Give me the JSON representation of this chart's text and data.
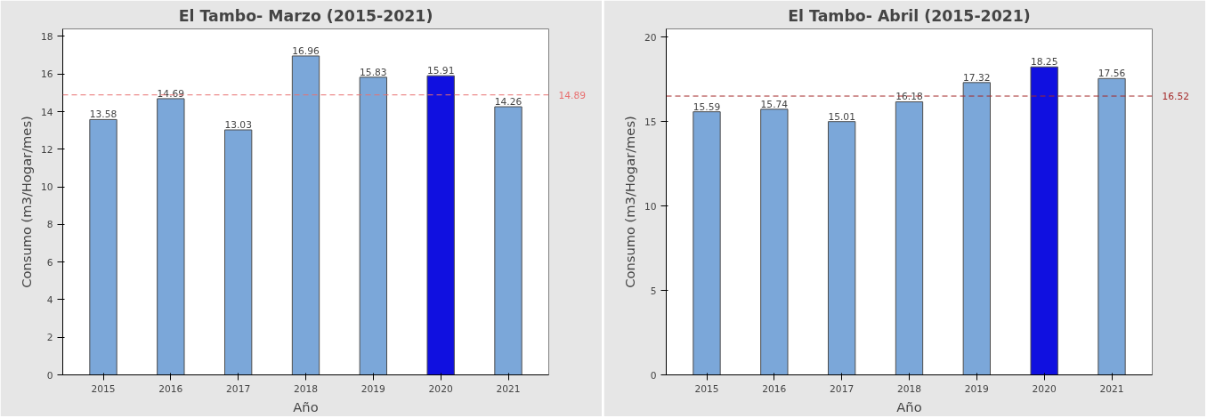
{
  "chart_data": [
    {
      "type": "bar",
      "title": "El Tambo- Marzo (2015-2021)",
      "xlabel": "Año",
      "ylabel": "Consumo (m3/Hogar/mes)",
      "categories": [
        "2015",
        "2016",
        "2017",
        "2018",
        "2019",
        "2020",
        "2021"
      ],
      "values": [
        13.58,
        14.69,
        13.03,
        16.96,
        15.83,
        15.91,
        14.26
      ],
      "colors": [
        "#7ba7d9",
        "#7ba7d9",
        "#7ba7d9",
        "#7ba7d9",
        "#7ba7d9",
        "#1010e0",
        "#7ba7d9"
      ],
      "ylim": [
        0,
        18.4
      ],
      "yticks": [
        0,
        2,
        4,
        6,
        8,
        10,
        12,
        14,
        16,
        18
      ],
      "data_labels": true,
      "grid": false,
      "ref_lines": [
        {
          "axis": "y",
          "value": 14.89,
          "label": "14.89",
          "color": "#e87070",
          "line_style": "dashed"
        }
      ]
    },
    {
      "type": "bar",
      "title": "El Tambo- Abril (2015-2021)",
      "xlabel": "Año",
      "ylabel": "Consumo (m3/Hogar/mes)",
      "categories": [
        "2015",
        "2016",
        "2017",
        "2018",
        "2019",
        "2020",
        "2021"
      ],
      "values": [
        15.59,
        15.74,
        15.01,
        16.18,
        17.32,
        18.25,
        17.56
      ],
      "colors": [
        "#7ba7d9",
        "#7ba7d9",
        "#7ba7d9",
        "#7ba7d9",
        "#7ba7d9",
        "#1010e0",
        "#7ba7d9"
      ],
      "ylim": [
        0,
        20.5
      ],
      "yticks": [
        0,
        5,
        10,
        15,
        20
      ],
      "data_labels": true,
      "grid": false,
      "ref_lines": [
        {
          "axis": "y",
          "value": 16.52,
          "label": "16.52",
          "color": "#a52a2a",
          "line_style": "dashed"
        }
      ]
    }
  ]
}
